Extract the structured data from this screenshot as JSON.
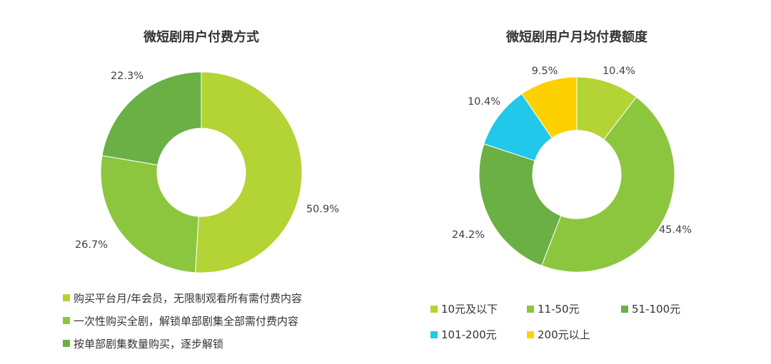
{
  "chart_data": [
    {
      "type": "pie",
      "title": "微短剧用户付费方式",
      "categories": [
        "购买平台月/年会员，无限制观看所有需付费内容",
        "一次性购买全剧，解锁单部剧集全部需付费内容",
        "按单部剧集数量购买，逐步解锁"
      ],
      "values": [
        50.9,
        26.7,
        22.3
      ],
      "labels": [
        "50.9%",
        "26.7%",
        "22.3%"
      ],
      "colors": [
        "#b4d334",
        "#8cc63f",
        "#6ab045"
      ],
      "legend_position": "bottom-left"
    },
    {
      "type": "pie",
      "title": "微短剧用户月均付费额度",
      "categories": [
        "10元及以下",
        "11-50元",
        "51-100元",
        "101-200元",
        "200元以上"
      ],
      "values": [
        10.4,
        45.4,
        24.2,
        10.4,
        9.5
      ],
      "labels": [
        "10.4%",
        "45.4%",
        "24.2%",
        "10.4%",
        "9.5%"
      ],
      "colors": [
        "#b4d334",
        "#8cc63f",
        "#6ab045",
        "#22c8ea",
        "#fdd000"
      ],
      "legend_position": "bottom"
    }
  ]
}
